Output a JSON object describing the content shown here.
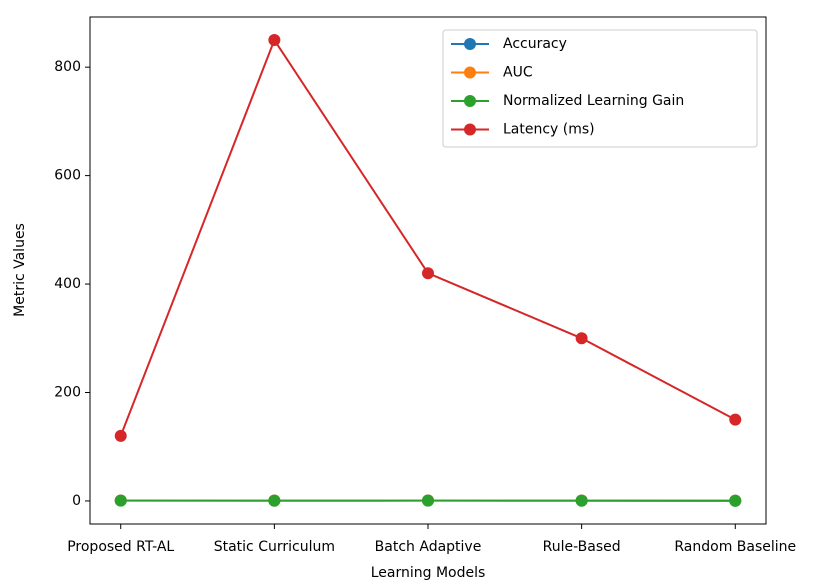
{
  "chart_data": {
    "type": "line",
    "xlabel": "Learning Models",
    "ylabel": "Metric Values",
    "categories": [
      "Proposed RT-AL",
      "Static Curriculum",
      "Batch Adaptive",
      "Rule-Based",
      "Random Baseline"
    ],
    "series": [
      {
        "name": "Accuracy",
        "color": "#1f77b4",
        "values": [
          0.92,
          0.78,
          0.85,
          0.74,
          0.6
        ]
      },
      {
        "name": "AUC",
        "color": "#ff7f0e",
        "values": [
          0.94,
          0.8,
          0.87,
          0.76,
          0.62
        ]
      },
      {
        "name": "Normalized Learning Gain",
        "color": "#2ca02c",
        "values": [
          0.65,
          0.4,
          0.5,
          0.35,
          0.2
        ]
      },
      {
        "name": "Latency (ms)",
        "color": "#d62728",
        "values": [
          120,
          850,
          420,
          300,
          150
        ]
      }
    ],
    "ylim": [
      -42.5,
      892.5
    ],
    "yticks": [
      0,
      200,
      400,
      600,
      800
    ],
    "legend": "upper right",
    "grid": false
  }
}
